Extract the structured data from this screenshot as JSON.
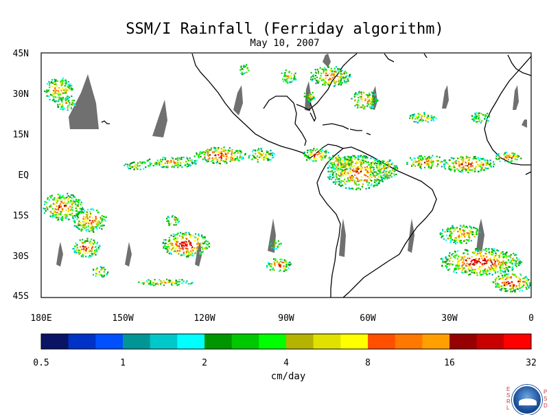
{
  "title": "SSM/I Rainfall (Ferriday algorithm)",
  "subtitle": "May 10, 2007",
  "lat_labels": [
    "45N",
    "30N",
    "15N",
    "EQ",
    "15S",
    "30S",
    "45S"
  ],
  "lon_labels": [
    "180E",
    "150W",
    "120W",
    "90W",
    "60W",
    "30W",
    "0"
  ],
  "colorbar": {
    "unit": "cm/day",
    "ticks": [
      "0.5",
      "1",
      "2",
      "4",
      "8",
      "16",
      "32"
    ],
    "colors": [
      "#0a1464",
      "#0032c8",
      "#0050ff",
      "#009696",
      "#00c8c8",
      "#00ffff",
      "#009600",
      "#00c800",
      "#00ff00",
      "#b4b400",
      "#e1e100",
      "#ffff00",
      "#ff5000",
      "#ff7800",
      "#ffa000",
      "#960000",
      "#c80000",
      "#ff0000"
    ]
  },
  "logo_letters_left": [
    "E",
    "S",
    "R",
    "L"
  ],
  "logo_letters_right": [
    "P",
    "S",
    "D"
  ]
}
